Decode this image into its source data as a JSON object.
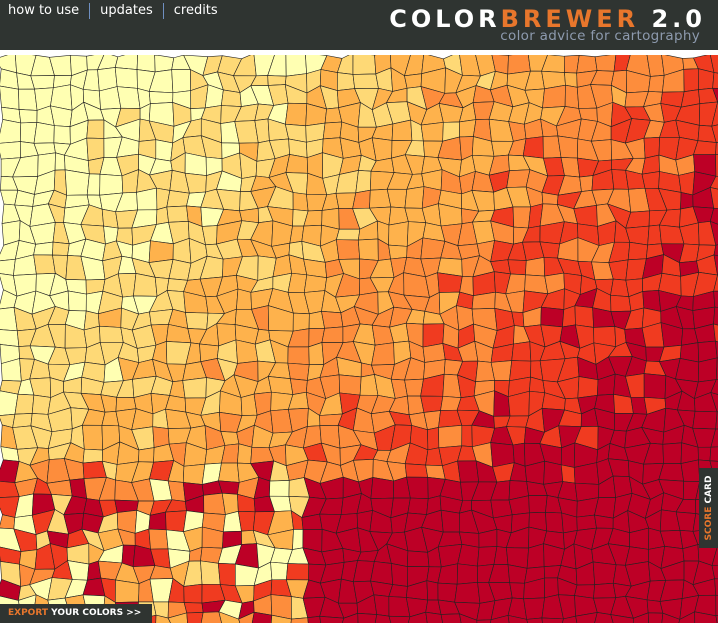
{
  "nav": [
    "how to use",
    "updates",
    "credits"
  ],
  "logo": {
    "color": "COLOR",
    "brewer": "BREWER",
    "version": "2.0",
    "tagline": "color advice for cartography"
  },
  "score_card": {
    "score": "SCORE",
    "card": "CARD"
  },
  "export": {
    "export": "EXPORT",
    "your_colors": "YOUR COLORS >>"
  }
}
